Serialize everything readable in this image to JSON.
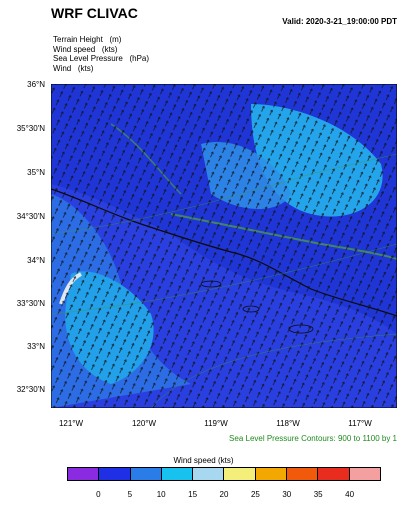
{
  "title": "WRF CLIVAC",
  "valid": "Valid: 2020-3-21_19:00:00 PDT",
  "fields": [
    "Terrain Height   (m)",
    "Wind speed   (kts)",
    "Sea Level Pressure   (hPa)",
    "Wind   (kts)"
  ],
  "lat_labels": [
    "36°N",
    "35°30'N",
    "35°N",
    "34°30'N",
    "34°N",
    "33°30'N",
    "33°N",
    "32°30'N"
  ],
  "lon_labels": [
    "121°W",
    "120°W",
    "119°W",
    "118°W",
    "117°W"
  ],
  "slp_note": "Sea Level Pressure Contours: 900 to 1100 by 1",
  "colorbar": {
    "title": "Wind speed  (kts)",
    "ticks": [
      "0",
      "5",
      "10",
      "15",
      "20",
      "25",
      "30",
      "35",
      "40"
    ],
    "colors": [
      "#8a2be2",
      "#1e2fe6",
      "#2a7ce8",
      "#18c2ee",
      "#a8d8ef",
      "#f4ee7a",
      "#f2a800",
      "#f05a0a",
      "#e82c1e",
      "#f4a0a0"
    ]
  }
}
